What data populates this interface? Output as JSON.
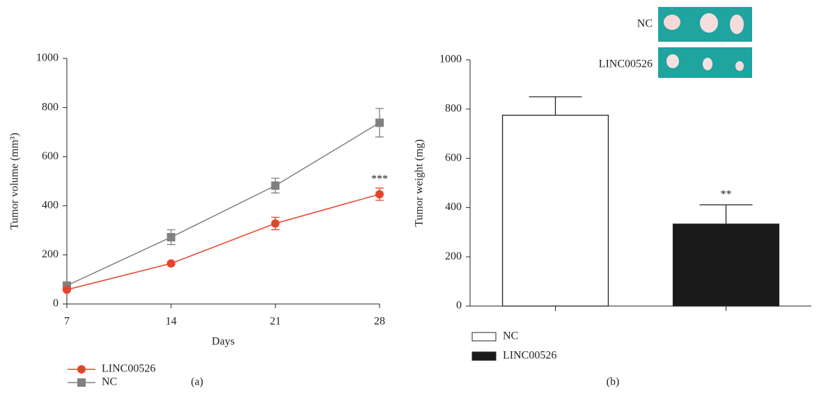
{
  "chart_data": [
    {
      "type": "line",
      "panel_label": "(a)",
      "x_label": "Days",
      "y_label": "Tumor volume (mm³)",
      "x": [
        7,
        14,
        21,
        28
      ],
      "xlim": [
        7,
        28
      ],
      "xticks": [
        7,
        14,
        21,
        28
      ],
      "ylim": [
        0,
        1000
      ],
      "yticks": [
        0,
        200,
        400,
        600,
        800,
        1000
      ],
      "series": [
        {
          "name": "LINC00526",
          "color": "#e8432b",
          "marker": "circle",
          "values": [
            58,
            165,
            328,
            447
          ],
          "errors": [
            5,
            5,
            25,
            25
          ]
        },
        {
          "name": "NC",
          "color": "#808080",
          "marker": "square",
          "values": [
            75,
            272,
            482,
            738
          ],
          "errors": [
            8,
            30,
            30,
            58
          ]
        }
      ],
      "annotation": "***",
      "legend": "bottom-left"
    },
    {
      "type": "bar",
      "panel_label": "(b)",
      "y_label": "Tumor weight (mg)",
      "ylim": [
        0,
        1000
      ],
      "yticks": [
        0,
        200,
        400,
        600,
        800,
        1000
      ],
      "series": [
        {
          "name": "NC",
          "color": "#ffffff",
          "values": [
            775
          ],
          "errors": [
            75
          ]
        },
        {
          "name": "LINC00526",
          "color": "#1a1a1a",
          "values": [
            333
          ],
          "errors": [
            78
          ]
        }
      ],
      "annotation": "**",
      "inset_labels": [
        "NC",
        "LINC00526"
      ],
      "legend": "bottom-left"
    }
  ]
}
